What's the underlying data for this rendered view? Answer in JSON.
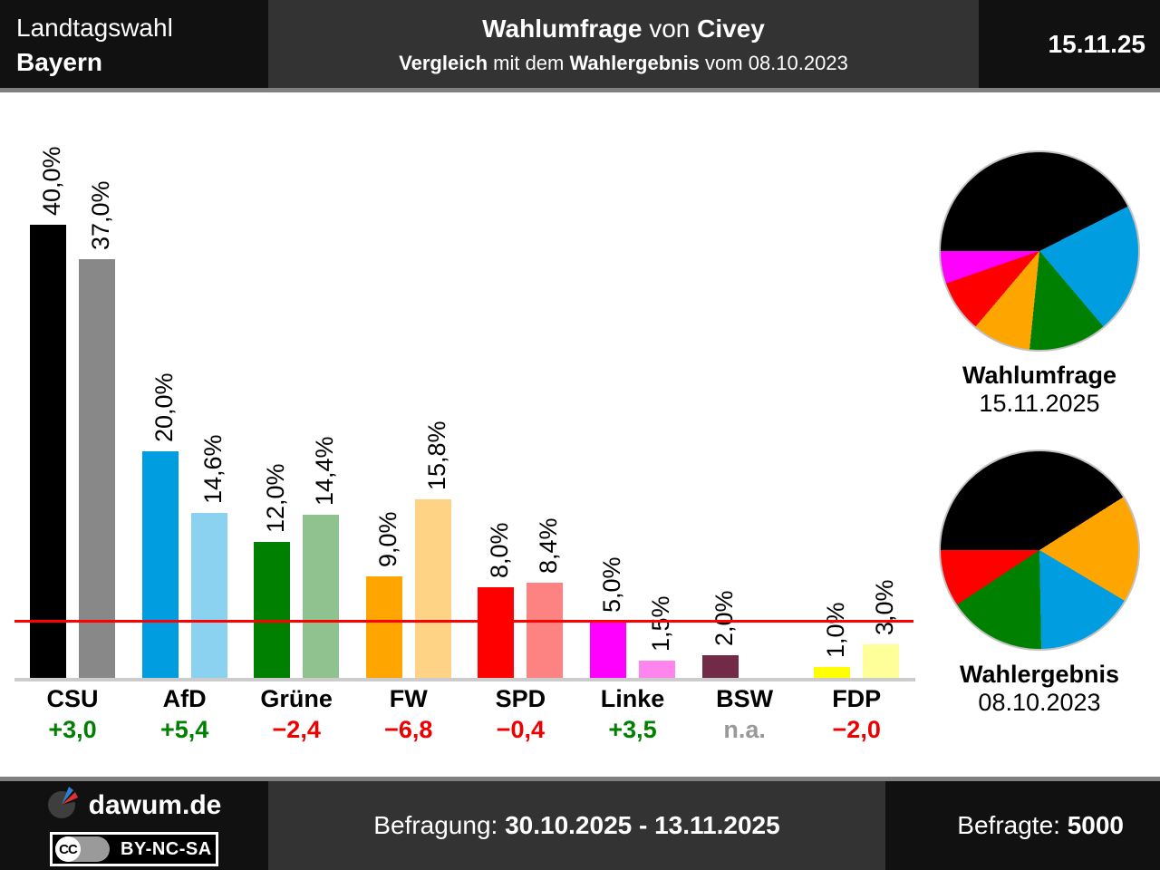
{
  "header": {
    "election": "Landtagswahl",
    "region": "Bayern",
    "title_bold1": "Wahlumfrage",
    "title_mid": " von ",
    "title_bold2": "Civey",
    "subtitle_bold1": "Vergleich",
    "subtitle_mid1": " mit dem ",
    "subtitle_bold2": "Wahlergebnis",
    "subtitle_mid2": " vom 08.10.2023",
    "date": "15.11.25"
  },
  "footer": {
    "brand": "dawum.de",
    "cc_mark": "CC",
    "license": "BY-NC-SA",
    "survey_label": "Befragung: ",
    "survey_period": "30.10.2025 - 13.11.2025",
    "respondents_label": "Befragte: ",
    "respondents_value": "5000"
  },
  "colors": {
    "threshold_line": "#ff0000",
    "diff_positive": "#008000",
    "diff_negative": "#ee0000",
    "diff_na": "#999999"
  },
  "chart_data": [
    {
      "type": "bar",
      "title": "Wahlumfrage von Civey, Vergleich mit dem Wahlergebnis vom 08.10.2023",
      "unit": "%",
      "ylim": [
        0,
        42
      ],
      "threshold": {
        "value": 5,
        "color": "#ff0000"
      },
      "series_names": [
        "Wahlumfrage 15.11.2025",
        "Wahlergebnis 08.10.2023"
      ],
      "categories": [
        {
          "party": "CSU",
          "diff": "+3,0",
          "diff_color": "#008000",
          "bars": [
            {
              "value": 40.0,
              "label": "40,0%",
              "color": "#000000"
            },
            {
              "value": 37.0,
              "label": "37,0%",
              "color": "#888888"
            }
          ]
        },
        {
          "party": "AfD",
          "diff": "+5,4",
          "diff_color": "#008000",
          "bars": [
            {
              "value": 20.0,
              "label": "20,0%",
              "color": "#009de0"
            },
            {
              "value": 14.6,
              "label": "14,6%",
              "color": "#8ad2f0"
            }
          ]
        },
        {
          "party": "Grüne",
          "diff": "−2,4",
          "diff_color": "#ee0000",
          "bars": [
            {
              "value": 12.0,
              "label": "12,0%",
              "color": "#008000"
            },
            {
              "value": 14.4,
              "label": "14,4%",
              "color": "#90c290"
            }
          ]
        },
        {
          "party": "FW",
          "diff": "−6,8",
          "diff_color": "#ee0000",
          "bars": [
            {
              "value": 9.0,
              "label": "9,0%",
              "color": "#ffa500"
            },
            {
              "value": 15.8,
              "label": "15,8%",
              "color": "#ffd385"
            }
          ]
        },
        {
          "party": "SPD",
          "diff": "−0,4",
          "diff_color": "#ee0000",
          "bars": [
            {
              "value": 8.0,
              "label": "8,0%",
              "color": "#ff0000"
            },
            {
              "value": 8.4,
              "label": "8,4%",
              "color": "#fd8383"
            }
          ]
        },
        {
          "party": "Linke",
          "diff": "+3,5",
          "diff_color": "#008000",
          "bars": [
            {
              "value": 5.0,
              "label": "5,0%",
              "color": "#ff00ff"
            },
            {
              "value": 1.5,
              "label": "1,5%",
              "color": "#ff85ee"
            }
          ]
        },
        {
          "party": "BSW",
          "diff": "n.a.",
          "diff_color": "#999999",
          "bars": [
            {
              "value": 2.0,
              "label": "2,0%",
              "color": "#722b47"
            }
          ]
        },
        {
          "party": "FDP",
          "diff": "−2,0",
          "diff_color": "#ee0000",
          "bars": [
            {
              "value": 1.0,
              "label": "1,0%",
              "color": "#ffff00"
            },
            {
              "value": 3.0,
              "label": "3,0%",
              "color": "#ffff99"
            }
          ]
        }
      ]
    },
    {
      "type": "pie",
      "title": "Wahlumfrage",
      "subtitle": "15.11.2025",
      "slices": [
        {
          "party": "CSU",
          "value": 40.0,
          "color": "#000000"
        },
        {
          "party": "AfD",
          "value": 20.0,
          "color": "#009de0"
        },
        {
          "party": "Grüne",
          "value": 12.0,
          "color": "#008000"
        },
        {
          "party": "FW",
          "value": 9.0,
          "color": "#ffa500"
        },
        {
          "party": "SPD",
          "value": 8.0,
          "color": "#ff0000"
        },
        {
          "party": "Linke",
          "value": 5.0,
          "color": "#ff00ff"
        }
      ]
    },
    {
      "type": "pie",
      "title": "Wahlergebnis",
      "subtitle": "08.10.2023",
      "slices": [
        {
          "party": "CSU",
          "value": 37.0,
          "color": "#000000"
        },
        {
          "party": "FW",
          "value": 15.8,
          "color": "#ffa500"
        },
        {
          "party": "AfD",
          "value": 14.6,
          "color": "#009de0"
        },
        {
          "party": "Grüne",
          "value": 14.4,
          "color": "#008000"
        },
        {
          "party": "SPD",
          "value": 8.4,
          "color": "#ff0000"
        }
      ]
    }
  ]
}
